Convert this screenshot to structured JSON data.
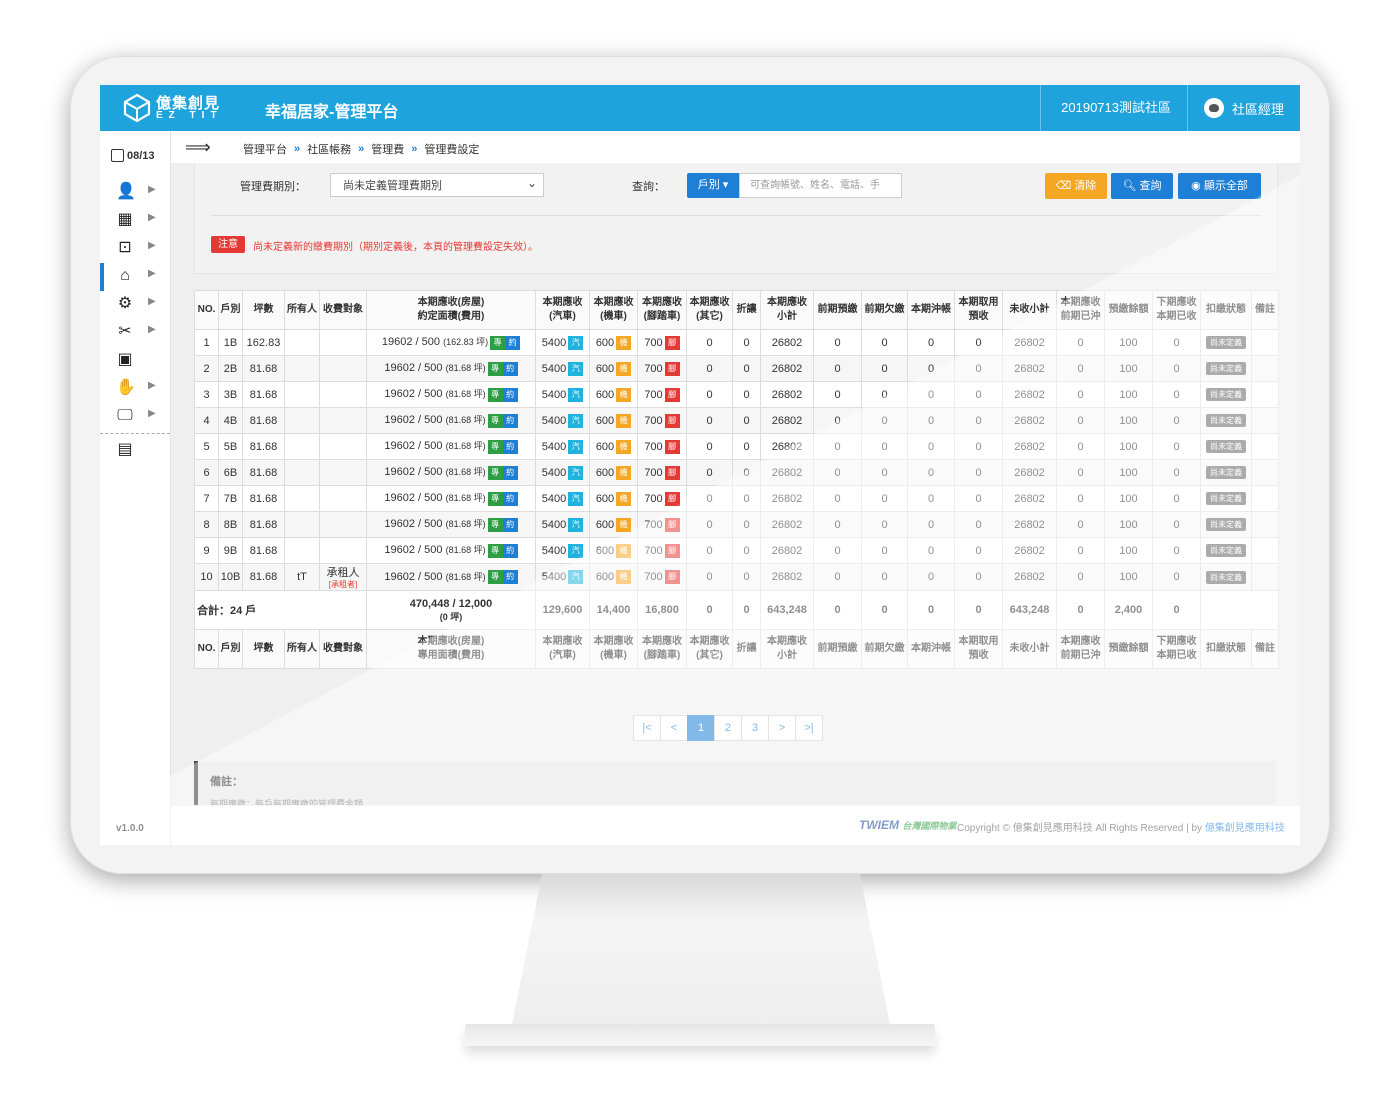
{
  "header": {
    "logo_cn": "億集創見",
    "logo_en": "EZ TIT",
    "app_title": "幸福居家-管理平台",
    "community": "20190713測試社區",
    "user": "社區經理"
  },
  "sidebar": {
    "date": "08/13",
    "version": "v1.0.0",
    "items": [
      {
        "icon": "user-card-icon"
      },
      {
        "icon": "building-icon"
      },
      {
        "icon": "briefcase-icon"
      },
      {
        "icon": "house-fee-icon"
      },
      {
        "icon": "house-gear-icon"
      },
      {
        "icon": "tools-icon"
      },
      {
        "icon": "package-icon"
      },
      {
        "icon": "hand-icon"
      },
      {
        "icon": "monitor-settings-icon"
      },
      {
        "icon": "monitor-chart-icon"
      }
    ]
  },
  "breadcrumb": [
    "管理平台",
    "社區帳務",
    "管理費",
    "管理費設定"
  ],
  "filter": {
    "period_label": "管理費期別：",
    "period_value": "尚未定義管理費期別",
    "query_label": "查詢：",
    "dropdown": "戶別",
    "search_placeholder": "可查詢帳號、姓名、電話、手",
    "clear": "清除",
    "query": "查詢",
    "show_all": "顯示全部",
    "note_tag": "注意",
    "note_text": "尚未定義新的繳費期別（期別定義後，本頁的管理費設定失效）。"
  },
  "table": {
    "headers": [
      "NO.",
      "戶別",
      "坪數",
      "所有人",
      "收費對象",
      "本期應收(房屋)\n約定面積(費用)",
      "本期應收\n(汽車)",
      "本期應收\n(機車)",
      "本期應收\n(腳踏車)",
      "本期應收\n(其它)",
      "折讓",
      "本期應收\n小計",
      "前期預繳",
      "前期欠繳",
      "本期沖帳",
      "本期取用\n預收",
      "未收小計",
      "本期應收\n前期已沖",
      "預繳餘額",
      "下期應收\n本期已收",
      "扣繳狀態",
      "備註"
    ],
    "footer_headers": [
      "NO.",
      "戶別",
      "坪數",
      "所有人",
      "收費對象",
      "本期應收(房屋)\n專用面積(費用)",
      "本期應收\n(汽車)",
      "本期應收\n(機車)",
      "本期應收\n(腳踏車)",
      "本期應收\n(其它)",
      "折讓",
      "本期應收\n小計",
      "前期預繳",
      "前期欠繳",
      "本期沖帳",
      "本期取用\n預收",
      "未收小計",
      "本期應收\n前期已沖",
      "預繳餘額",
      "下期應收\n本期已收",
      "扣繳狀態",
      "備註"
    ],
    "badges": {
      "zhuan": "專",
      "yue": "約",
      "car": "汽",
      "moto": "機",
      "bike": "腳"
    },
    "rows": [
      {
        "no": "1",
        "unit": "1B",
        "area": "162.83",
        "owner": "",
        "payer": "",
        "payer_sub": "",
        "house": "19602 / 500",
        "house_area": "(162.83 坪)",
        "car": "5400",
        "moto": "600",
        "bike": "700",
        "other": "0",
        "discount": "0",
        "subtotal": "26802",
        "prepaid": "0",
        "arrears": "0",
        "offset": "0",
        "use_prepaid": "0",
        "unpaid": "26802",
        "prev_offset": "0",
        "balance": "100",
        "next": "0",
        "status": "尚未定義",
        "memo": ""
      },
      {
        "no": "2",
        "unit": "2B",
        "area": "81.68",
        "owner": "",
        "payer": "",
        "payer_sub": "",
        "house": "19602 / 500",
        "house_area": "(81.68 坪)",
        "car": "5400",
        "moto": "600",
        "bike": "700",
        "other": "0",
        "discount": "0",
        "subtotal": "26802",
        "prepaid": "0",
        "arrears": "0",
        "offset": "0",
        "use_prepaid": "0",
        "unpaid": "26802",
        "prev_offset": "0",
        "balance": "100",
        "next": "0",
        "status": "尚未定義",
        "memo": ""
      },
      {
        "no": "3",
        "unit": "3B",
        "area": "81.68",
        "owner": "",
        "payer": "",
        "payer_sub": "",
        "house": "19602 / 500",
        "house_area": "(81.68 坪)",
        "car": "5400",
        "moto": "600",
        "bike": "700",
        "other": "0",
        "discount": "0",
        "subtotal": "26802",
        "prepaid": "0",
        "arrears": "0",
        "offset": "0",
        "use_prepaid": "0",
        "unpaid": "26802",
        "prev_offset": "0",
        "balance": "100",
        "next": "0",
        "status": "尚未定義",
        "memo": ""
      },
      {
        "no": "4",
        "unit": "4B",
        "area": "81.68",
        "owner": "",
        "payer": "",
        "payer_sub": "",
        "house": "19602 / 500",
        "house_area": "(81.68 坪)",
        "car": "5400",
        "moto": "600",
        "bike": "700",
        "other": "0",
        "discount": "0",
        "subtotal": "26802",
        "prepaid": "0",
        "arrears": "0",
        "offset": "0",
        "use_prepaid": "0",
        "unpaid": "26802",
        "prev_offset": "0",
        "balance": "100",
        "next": "0",
        "status": "尚未定義",
        "memo": ""
      },
      {
        "no": "5",
        "unit": "5B",
        "area": "81.68",
        "owner": "",
        "payer": "",
        "payer_sub": "",
        "house": "19602 / 500",
        "house_area": "(81.68 坪)",
        "car": "5400",
        "moto": "600",
        "bike": "700",
        "other": "0",
        "discount": "0",
        "subtotal": "26802",
        "prepaid": "0",
        "arrears": "0",
        "offset": "0",
        "use_prepaid": "0",
        "unpaid": "26802",
        "prev_offset": "0",
        "balance": "100",
        "next": "0",
        "status": "尚未定義",
        "memo": ""
      },
      {
        "no": "6",
        "unit": "6B",
        "area": "81.68",
        "owner": "",
        "payer": "",
        "payer_sub": "",
        "house": "19602 / 500",
        "house_area": "(81.68 坪)",
        "car": "5400",
        "moto": "600",
        "bike": "700",
        "other": "0",
        "discount": "0",
        "subtotal": "26802",
        "prepaid": "0",
        "arrears": "0",
        "offset": "0",
        "use_prepaid": "0",
        "unpaid": "26802",
        "prev_offset": "0",
        "balance": "100",
        "next": "0",
        "status": "尚未定義",
        "memo": ""
      },
      {
        "no": "7",
        "unit": "7B",
        "area": "81.68",
        "owner": "",
        "payer": "",
        "payer_sub": "",
        "house": "19602 / 500",
        "house_area": "(81.68 坪)",
        "car": "5400",
        "moto": "600",
        "bike": "700",
        "other": "0",
        "discount": "0",
        "subtotal": "26802",
        "prepaid": "0",
        "arrears": "0",
        "offset": "0",
        "use_prepaid": "0",
        "unpaid": "26802",
        "prev_offset": "0",
        "balance": "100",
        "next": "0",
        "status": "尚未定義",
        "memo": ""
      },
      {
        "no": "8",
        "unit": "8B",
        "area": "81.68",
        "owner": "",
        "payer": "",
        "payer_sub": "",
        "house": "19602 / 500",
        "house_area": "(81.68 坪)",
        "car": "5400",
        "moto": "600",
        "bike": "700",
        "other": "0",
        "discount": "0",
        "subtotal": "26802",
        "prepaid": "0",
        "arrears": "0",
        "offset": "0",
        "use_prepaid": "0",
        "unpaid": "26802",
        "prev_offset": "0",
        "balance": "100",
        "next": "0",
        "status": "尚未定義",
        "memo": ""
      },
      {
        "no": "9",
        "unit": "9B",
        "area": "81.68",
        "owner": "",
        "payer": "",
        "payer_sub": "",
        "house": "19602 / 500",
        "house_area": "(81.68 坪)",
        "car": "5400",
        "moto": "600",
        "bike": "700",
        "other": "0",
        "discount": "0",
        "subtotal": "26802",
        "prepaid": "0",
        "arrears": "0",
        "offset": "0",
        "use_prepaid": "0",
        "unpaid": "26802",
        "prev_offset": "0",
        "balance": "100",
        "next": "0",
        "status": "尚未定義",
        "memo": ""
      },
      {
        "no": "10",
        "unit": "10B",
        "area": "81.68",
        "owner": "tT",
        "payer": "承租人",
        "payer_sub": "[承租者]",
        "house": "19602 / 500",
        "house_area": "(81.68 坪)",
        "car": "5400",
        "moto": "600",
        "bike": "700",
        "other": "0",
        "discount": "0",
        "subtotal": "26802",
        "prepaid": "0",
        "arrears": "0",
        "offset": "0",
        "use_prepaid": "0",
        "unpaid": "26802",
        "prev_offset": "0",
        "balance": "100",
        "next": "0",
        "status": "尚未定義",
        "memo": ""
      }
    ],
    "total": {
      "label": "合計：24 戶",
      "house": "470,448 / 12,000",
      "house_area": "(0 坪)",
      "car": "129,600",
      "moto": "14,400",
      "bike": "16,800",
      "other": "0",
      "discount": "0",
      "subtotal": "643,248",
      "prepaid": "0",
      "arrears": "0",
      "offset": "0",
      "use_prepaid": "0",
      "unpaid": "643,248",
      "prev_offset": "0",
      "balance": "2,400",
      "next": "0"
    }
  },
  "pagination": [
    "|<",
    "<",
    "1",
    "2",
    "3",
    ">",
    ">|"
  ],
  "pagination_active": "1",
  "remark": {
    "title": "備註：",
    "text": "每期應繳：每戶每期應繳的管理費金額"
  },
  "footer": {
    "logo": "TWIEM",
    "logo_sub": "台灣國際物業",
    "copyright": "Copyright © 億集創見應用科技 All Rights Reserved | by ",
    "link": "億集創見應用科技"
  }
}
